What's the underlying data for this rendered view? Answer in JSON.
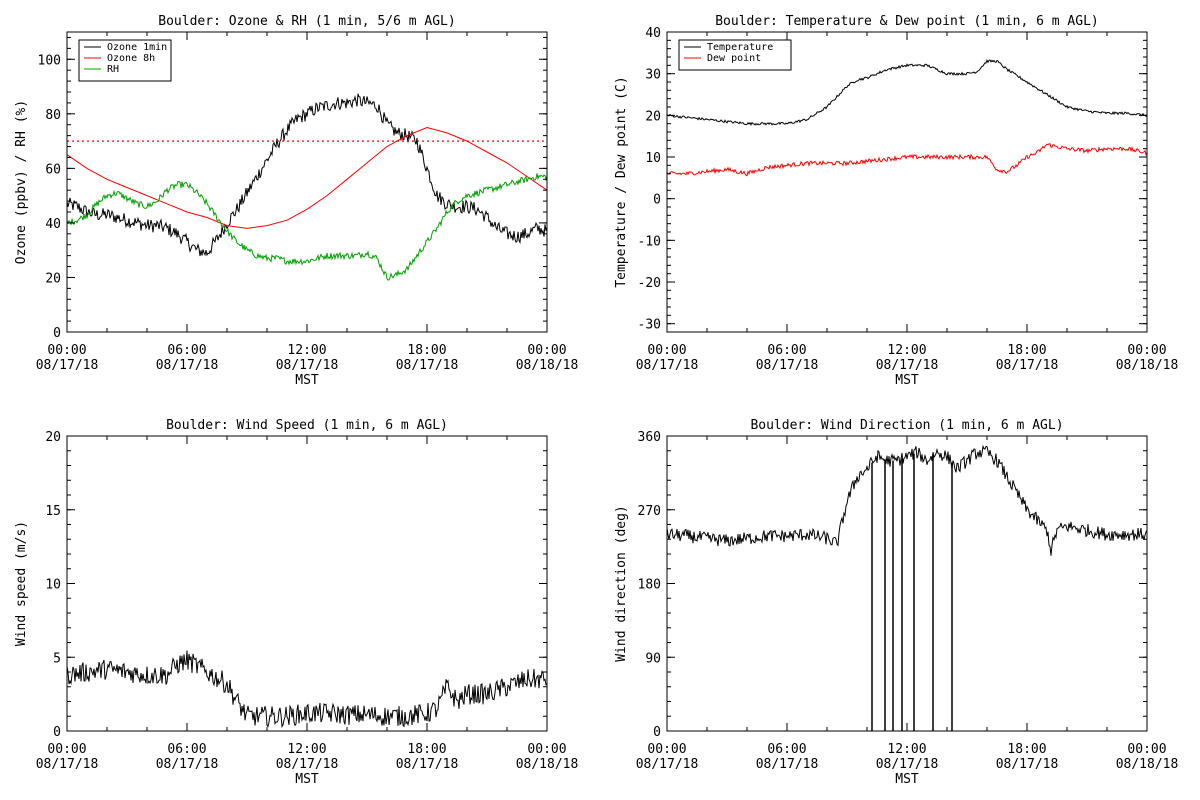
{
  "chart_data": [
    {
      "type": "line",
      "title": "Boulder: Ozone & RH (1 min, 5/6 m AGL)",
      "xlabel": "MST",
      "ylabel": "Ozone (ppbv) / RH (%)",
      "xlim": [
        0,
        24
      ],
      "ylim": [
        0,
        110
      ],
      "yticks": [
        0,
        20,
        40,
        60,
        80,
        100
      ],
      "xtick_labels": [
        [
          "00:00",
          "08/17/18"
        ],
        [
          "06:00",
          "08/17/18"
        ],
        [
          "12:00",
          "08/17/18"
        ],
        [
          "18:00",
          "08/17/18"
        ],
        [
          "00:00",
          "08/18/18"
        ]
      ],
      "grid": false,
      "legend": "top-left",
      "reference_line": {
        "y": 70,
        "color": "#ff0000",
        "style": "dotted"
      },
      "series": [
        {
          "name": "Ozone 1min",
          "color": "#000000",
          "noise": 2.5,
          "x": [
            0,
            0.5,
            1,
            1.5,
            2,
            2.5,
            3,
            3.5,
            4,
            4.5,
            5,
            5.5,
            6,
            6.5,
            7,
            7.5,
            8,
            8.5,
            9,
            9.5,
            10,
            10.5,
            11,
            11.5,
            12,
            12.5,
            13,
            13.5,
            14,
            14.5,
            15,
            15.5,
            16,
            16.5,
            17,
            17.5,
            18,
            18.5,
            19,
            19.5,
            20,
            20.5,
            21,
            21.5,
            22,
            22.5,
            23,
            23.5,
            24
          ],
          "values": [
            47,
            46,
            44,
            43,
            43,
            42,
            41,
            40,
            39,
            39,
            38,
            36,
            33,
            30,
            29,
            34,
            40,
            45,
            51,
            57,
            63,
            69,
            74,
            78,
            80,
            82,
            83,
            84,
            84,
            85,
            84,
            83,
            76,
            73,
            72,
            70,
            60,
            50,
            47,
            46,
            46,
            45,
            42,
            38,
            36,
            35,
            36,
            38,
            37
          ]
        },
        {
          "name": "Ozone 8h",
          "color": "#ff0000",
          "noise": 0,
          "x": [
            0,
            1,
            2,
            3,
            4,
            5,
            6,
            7,
            8,
            9,
            10,
            11,
            12,
            13,
            14,
            15,
            16,
            17,
            18,
            19,
            20,
            21,
            22,
            23,
            24
          ],
          "values": [
            65,
            60,
            56,
            53,
            50,
            47,
            44,
            42,
            39,
            38,
            39,
            41,
            45,
            50,
            56,
            62,
            68,
            72,
            75,
            73,
            70,
            66,
            62,
            57,
            52
          ]
        },
        {
          "name": "RH",
          "color": "#00a000",
          "noise": 1.2,
          "x": [
            0,
            0.5,
            1,
            1.5,
            2,
            2.5,
            3,
            3.5,
            4,
            4.5,
            5,
            5.5,
            6,
            6.5,
            7,
            7.5,
            8,
            8.5,
            9,
            9.5,
            10,
            10.5,
            11,
            11.5,
            12,
            12.5,
            13,
            13.5,
            14,
            14.5,
            15,
            15.5,
            16,
            16.5,
            17,
            17.5,
            18,
            18.5,
            19,
            19.5,
            20,
            20.5,
            21,
            21.5,
            22,
            22.5,
            23,
            23.5,
            24
          ],
          "values": [
            40,
            41,
            43,
            47,
            50,
            51,
            49,
            47,
            46,
            48,
            52,
            54,
            54,
            51,
            47,
            42,
            37,
            33,
            30,
            28,
            27,
            27,
            26,
            26,
            26,
            27,
            28,
            28,
            28,
            28,
            29,
            27,
            20,
            21,
            23,
            28,
            33,
            38,
            44,
            48,
            50,
            51,
            52,
            53,
            54,
            55,
            56,
            57,
            57
          ]
        }
      ]
    },
    {
      "type": "line",
      "title": "Boulder: Temperature & Dew point (1 min, 6 m AGL)",
      "xlabel": "MST",
      "ylabel": "Temperature / Dew point (C)",
      "xlim": [
        0,
        24
      ],
      "ylim": [
        -32,
        40
      ],
      "yticks": [
        -30,
        -20,
        -10,
        0,
        10,
        20,
        30,
        40
      ],
      "xtick_labels": [
        [
          "00:00",
          "08/17/18"
        ],
        [
          "06:00",
          "08/17/18"
        ],
        [
          "12:00",
          "08/17/18"
        ],
        [
          "18:00",
          "08/17/18"
        ],
        [
          "00:00",
          "08/18/18"
        ]
      ],
      "grid": false,
      "legend": "top-left",
      "series": [
        {
          "name": "Temperature",
          "color": "#000000",
          "noise": 0.3,
          "x": [
            0,
            1,
            2,
            3,
            4,
            5,
            6,
            7,
            8,
            9,
            9.5,
            10,
            11,
            12,
            13,
            14,
            15,
            15.5,
            16,
            16.5,
            17,
            18,
            19,
            20,
            21,
            22,
            23,
            24
          ],
          "values": [
            20,
            19.5,
            19,
            18.5,
            18,
            18,
            18,
            19,
            22,
            27,
            28.5,
            29,
            31,
            32,
            32,
            30,
            30,
            30.5,
            33,
            33,
            31,
            28,
            25,
            22,
            21,
            20.5,
            20.5,
            20
          ]
        },
        {
          "name": "Dew point",
          "color": "#ff0000",
          "noise": 0.5,
          "x": [
            0,
            1,
            2,
            3,
            4,
            5,
            6,
            7,
            8,
            9,
            10,
            11,
            12,
            13,
            14,
            15,
            16,
            16.5,
            17,
            17.5,
            18,
            18.5,
            19,
            20,
            21,
            22,
            23,
            24
          ],
          "values": [
            6,
            6,
            6.5,
            7,
            6,
            7.5,
            8,
            8.5,
            8.5,
            8.5,
            9,
            9.5,
            10,
            10,
            10,
            10,
            10,
            7,
            6.5,
            8,
            10,
            11,
            13,
            12,
            11.5,
            12,
            12,
            11
          ]
        }
      ]
    },
    {
      "type": "line",
      "title": "Boulder: Wind Speed (1 min, 6 m AGL)",
      "xlabel": "MST",
      "ylabel": "Wind speed (m/s)",
      "xlim": [
        0,
        24
      ],
      "ylim": [
        0,
        20
      ],
      "yticks": [
        0,
        5,
        10,
        15,
        20
      ],
      "xtick_labels": [
        [
          "00:00",
          "08/17/18"
        ],
        [
          "06:00",
          "08/17/18"
        ],
        [
          "12:00",
          "08/17/18"
        ],
        [
          "18:00",
          "08/17/18"
        ],
        [
          "00:00",
          "08/18/18"
        ]
      ],
      "grid": false,
      "series": [
        {
          "name": "",
          "color": "#000000",
          "noise": 0.7,
          "x": [
            0,
            1,
            2,
            3,
            4,
            5,
            5.5,
            6,
            7,
            8,
            8.5,
            9,
            10,
            11,
            12,
            13,
            14,
            15,
            16,
            17,
            18,
            18.5,
            19,
            19.5,
            20,
            21,
            22,
            23,
            24
          ],
          "values": [
            3.8,
            4,
            4.2,
            4,
            3.8,
            3.8,
            4.5,
            4.8,
            4,
            3.2,
            2,
            1,
            1,
            1,
            1.2,
            1.2,
            1.1,
            1.1,
            1,
            1,
            1.2,
            1.5,
            3,
            2,
            2.5,
            2.5,
            3,
            3.5,
            3.5
          ]
        }
      ]
    },
    {
      "type": "line",
      "title": "Boulder: Wind Direction (1 min, 6 m AGL)",
      "xlabel": "MST",
      "ylabel": "Wind direction (deg)",
      "xlim": [
        0,
        24
      ],
      "ylim": [
        0,
        360
      ],
      "yticks": [
        0,
        90,
        180,
        270,
        360
      ],
      "xtick_labels": [
        [
          "00:00",
          "08/17/18"
        ],
        [
          "06:00",
          "08/17/18"
        ],
        [
          "12:00",
          "08/17/18"
        ],
        [
          "18:00",
          "08/17/18"
        ],
        [
          "00:00",
          "08/18/18"
        ]
      ],
      "grid": false,
      "series": [
        {
          "name": "",
          "color": "#000000",
          "noise": 8,
          "x": [
            0,
            1,
            2,
            3,
            4,
            5,
            6,
            7,
            8,
            8.5,
            9,
            9.5,
            10,
            10.5,
            11,
            11.5,
            12,
            12.5,
            13,
            13.5,
            14,
            14.5,
            15,
            15.5,
            16,
            16.5,
            17,
            17.5,
            18,
            19,
            19.2,
            19.5,
            20,
            21,
            22,
            23,
            24
          ],
          "values": [
            240,
            238,
            235,
            232,
            235,
            238,
            238,
            240,
            235,
            228,
            280,
            310,
            320,
            335,
            330,
            330,
            335,
            340,
            330,
            340,
            335,
            320,
            330,
            340,
            340,
            330,
            310,
            290,
            270,
            245,
            220,
            245,
            250,
            245,
            240,
            240,
            240
          ]
        }
      ],
      "spikes": [
        10.25,
        10.9,
        11.3,
        11.75,
        12.35,
        13.3,
        14.25
      ]
    }
  ]
}
